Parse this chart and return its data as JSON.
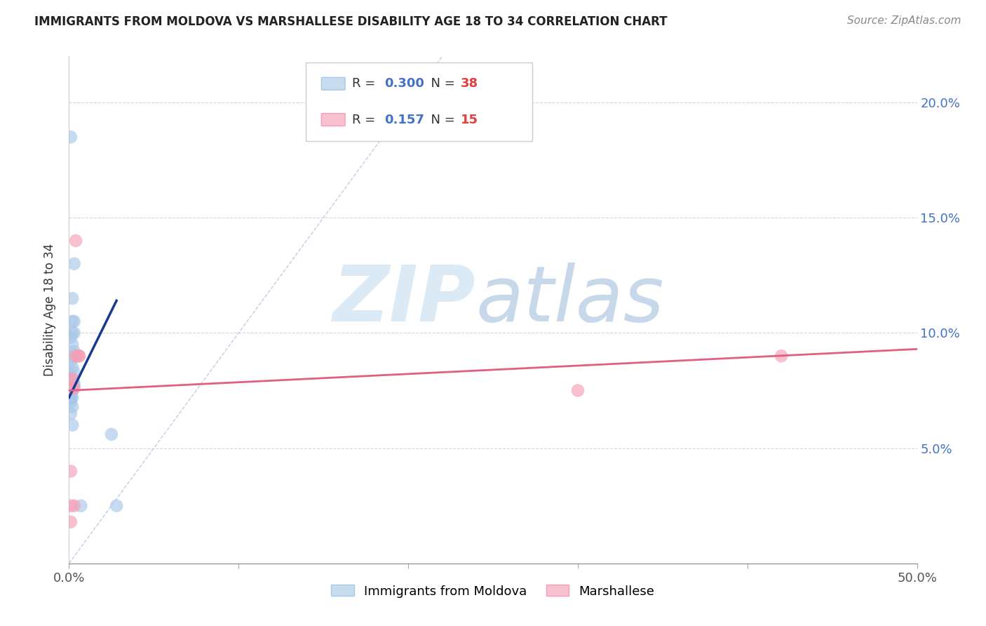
{
  "title": "IMMIGRANTS FROM MOLDOVA VS MARSHALLESE DISABILITY AGE 18 TO 34 CORRELATION CHART",
  "source": "Source: ZipAtlas.com",
  "ylabel": "Disability Age 18 to 34",
  "xlim": [
    0,
    0.5
  ],
  "ylim": [
    0,
    0.22
  ],
  "xtick_positions": [
    0.0,
    0.1,
    0.2,
    0.3,
    0.4,
    0.5
  ],
  "xtick_labels": [
    "0.0%",
    "",
    "",
    "",
    "",
    "50.0%"
  ],
  "ytick_positions": [
    0.0,
    0.05,
    0.1,
    0.15,
    0.2
  ],
  "ytick_labels_right": [
    "",
    "5.0%",
    "10.0%",
    "15.0%",
    "20.0%"
  ],
  "moldova_color": "#a8c8e8",
  "marshallese_color": "#f4a0b8",
  "moldova_line_color": "#1a3a8f",
  "marshallese_line_color": "#e06080",
  "diagonal_color": "#b0c4de",
  "legend_label_1": "Immigrants from Moldova",
  "legend_label_2": "Marshallese",
  "moldova_x": [
    0.001,
    0.003,
    0.002,
    0.002,
    0.003,
    0.003,
    0.002,
    0.001,
    0.002,
    0.003,
    0.002,
    0.001,
    0.002,
    0.003,
    0.001,
    0.002,
    0.001,
    0.002,
    0.003,
    0.001,
    0.002,
    0.003,
    0.001,
    0.002,
    0.001,
    0.002,
    0.001,
    0.001,
    0.002,
    0.001,
    0.001,
    0.001,
    0.002,
    0.001,
    0.002,
    0.025,
    0.028,
    0.007
  ],
  "moldova_y": [
    0.185,
    0.13,
    0.115,
    0.105,
    0.105,
    0.1,
    0.1,
    0.098,
    0.095,
    0.092,
    0.09,
    0.088,
    0.085,
    0.083,
    0.082,
    0.08,
    0.08,
    0.079,
    0.078,
    0.077,
    0.077,
    0.077,
    0.077,
    0.076,
    0.075,
    0.075,
    0.073,
    0.072,
    0.072,
    0.072,
    0.072,
    0.07,
    0.068,
    0.065,
    0.06,
    0.056,
    0.025,
    0.025
  ],
  "marshallese_x": [
    0.001,
    0.002,
    0.005,
    0.004,
    0.004,
    0.006,
    0.006,
    0.003,
    0.002,
    0.001,
    0.003,
    0.001,
    0.3,
    0.42,
    0.001
  ],
  "marshallese_y": [
    0.08,
    0.08,
    0.09,
    0.14,
    0.09,
    0.09,
    0.09,
    0.076,
    0.076,
    0.04,
    0.025,
    0.025,
    0.075,
    0.09,
    0.018
  ],
  "moldova_line_x": [
    0.0,
    0.028
  ],
  "moldova_line_y": [
    0.072,
    0.114
  ],
  "marshallese_line_x": [
    0.0,
    0.5
  ],
  "marshallese_line_y": [
    0.075,
    0.093
  ],
  "diag_line_x": [
    0.0,
    0.22
  ],
  "diag_line_y": [
    0.0,
    0.22
  ]
}
